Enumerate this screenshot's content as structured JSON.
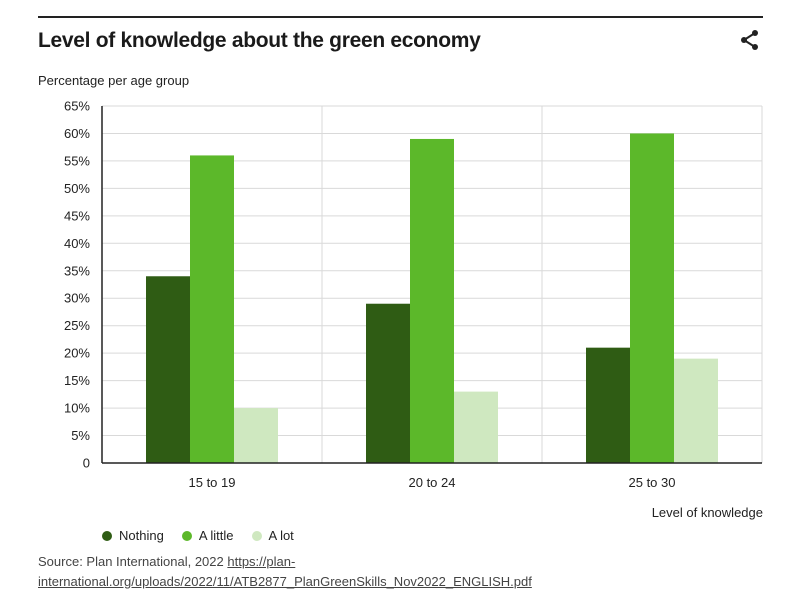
{
  "title": "Level of knowledge about the green economy",
  "share_icon": "share-icon",
  "source": {
    "prefix": "Source: Plan International, 2022 ",
    "url_text": "https://plan-international.org/uploads/2022/11/ATB2877_PlanGreenSkills_Nov2022_ENGLISH.pdf"
  },
  "colors": {
    "nothing": "#2f5c14",
    "a_little": "#5cb82a",
    "a_lot": "#cfe8c0",
    "grid": "#d9d9d9",
    "axis": "#222222"
  },
  "chart_data": {
    "type": "bar",
    "title": "Level of knowledge about the green economy",
    "ylabel": "Percentage per age group",
    "xlabel": "Level of knowledge",
    "ylim": [
      0,
      65
    ],
    "yticks": [
      0,
      5,
      10,
      15,
      20,
      25,
      30,
      35,
      40,
      45,
      50,
      55,
      60,
      65
    ],
    "ytick_labels": [
      "0",
      "5%",
      "10%",
      "15%",
      "20%",
      "25%",
      "30%",
      "35%",
      "40%",
      "45%",
      "50%",
      "55%",
      "60%",
      "65%"
    ],
    "categories": [
      "15 to 19",
      "20 to 24",
      "25 to 30"
    ],
    "series": [
      {
        "name": "Nothing",
        "values": [
          34,
          29,
          21
        ]
      },
      {
        "name": "A little",
        "values": [
          56,
          59,
          60
        ]
      },
      {
        "name": "A lot",
        "values": [
          10,
          13,
          19
        ]
      }
    ],
    "grid": true,
    "legend": "bottom-left"
  }
}
